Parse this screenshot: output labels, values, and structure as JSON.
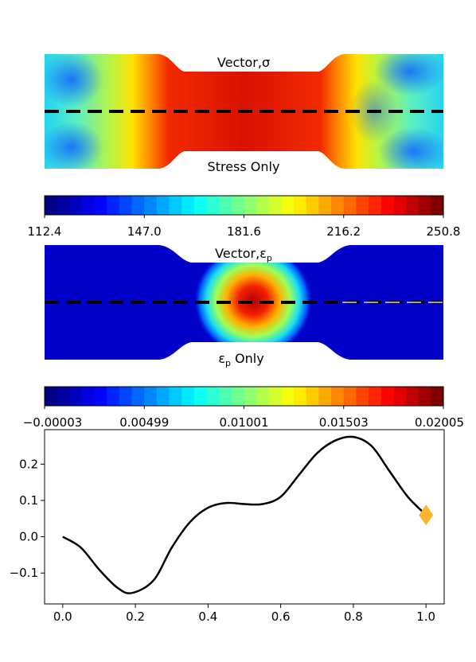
{
  "stress_panel": {
    "top_label": "Vector,σ",
    "bottom_label": "Stress Only",
    "colorbar_ticks": [
      "112.4",
      "147.0",
      "181.6",
      "216.2",
      "250.8"
    ]
  },
  "strain_panel": {
    "top_label": "Vector,ε",
    "top_label_sub": "p",
    "bottom_label": "ε",
    "bottom_label_sub": "p",
    "bottom_label_suffix": " Only",
    "colorbar_ticks": [
      "−0.00003",
      "0.00499",
      "0.01001",
      "0.01503",
      "0.02005"
    ]
  },
  "colormap": "jet",
  "colors": {
    "curve": "#000000",
    "marker": "#fdb52f"
  },
  "chart_data": [
    {
      "type": "heatmap",
      "colorbar": {
        "min": 112.4,
        "max": 250.8,
        "ticks": [
          112.4,
          147.0,
          181.6,
          216.2,
          250.8
        ],
        "levels": 32
      },
      "labels": [
        "Vector,σ",
        "Stress Only"
      ]
    },
    {
      "type": "heatmap",
      "colorbar": {
        "min": -3e-05,
        "max": 0.02005,
        "ticks": [
          -3e-05,
          0.00499,
          0.01001,
          0.01503,
          0.02005
        ],
        "levels": 32
      },
      "labels": [
        "Vector,εp",
        "εp Only"
      ]
    },
    {
      "type": "line",
      "x": [
        0.0,
        0.05,
        0.1,
        0.15,
        0.19,
        0.25,
        0.3,
        0.35,
        0.4,
        0.45,
        0.5,
        0.55,
        0.6,
        0.65,
        0.7,
        0.75,
        0.8,
        0.85,
        0.9,
        0.95,
        1.0
      ],
      "y": [
        0.0,
        -0.03,
        -0.09,
        -0.14,
        -0.155,
        -0.12,
        -0.03,
        0.04,
        0.08,
        0.093,
        0.09,
        0.09,
        0.11,
        0.17,
        0.23,
        0.265,
        0.275,
        0.25,
        0.18,
        0.11,
        0.06
      ],
      "marker": {
        "x": 1.0,
        "y": 0.06,
        "shape": "diamond"
      },
      "xlim": [
        -0.05,
        1.05
      ],
      "ylim": [
        -0.185,
        0.295
      ],
      "xticks": [
        "0.0",
        "0.2",
        "0.4",
        "0.6",
        "0.8",
        "1.0"
      ],
      "yticks": [
        "−0.1",
        "0.0",
        "0.1",
        "0.2"
      ],
      "title": "",
      "xlabel": "",
      "ylabel": "",
      "grid": false
    }
  ]
}
